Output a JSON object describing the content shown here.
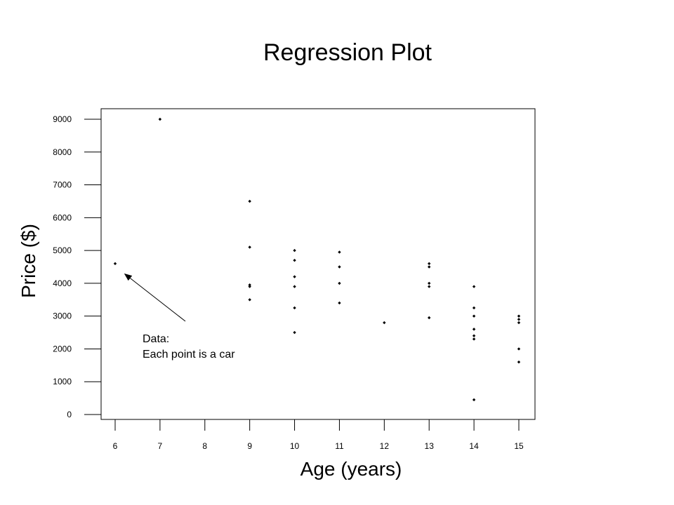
{
  "chart_data": {
    "type": "scatter",
    "title": "Regression Plot",
    "xlabel": "Age (years)",
    "ylabel": "Price ($)",
    "xlim": [
      6,
      15
    ],
    "ylim": [
      0,
      9000
    ],
    "x_ticks": [
      "6",
      "7",
      "8",
      "9",
      "10",
      "11",
      "12",
      "13",
      "14",
      "15"
    ],
    "y_ticks": [
      "0",
      "1000",
      "2000",
      "3000",
      "4000",
      "5000",
      "6000",
      "7000",
      "8000",
      "9000"
    ],
    "grid": false,
    "legend": "none",
    "point_color": "#000000",
    "points": [
      {
        "x": 6,
        "y": 4600
      },
      {
        "x": 7,
        "y": 9000
      },
      {
        "x": 9,
        "y": 6500
      },
      {
        "x": 9,
        "y": 5100
      },
      {
        "x": 9,
        "y": 3950
      },
      {
        "x": 9,
        "y": 3900
      },
      {
        "x": 9,
        "y": 3500
      },
      {
        "x": 10,
        "y": 5000
      },
      {
        "x": 10,
        "y": 4700
      },
      {
        "x": 10,
        "y": 4200
      },
      {
        "x": 10,
        "y": 3900
      },
      {
        "x": 10,
        "y": 3250
      },
      {
        "x": 10,
        "y": 2500
      },
      {
        "x": 11,
        "y": 4950
      },
      {
        "x": 11,
        "y": 4500
      },
      {
        "x": 11,
        "y": 4000
      },
      {
        "x": 11,
        "y": 3400
      },
      {
        "x": 12,
        "y": 2800
      },
      {
        "x": 13,
        "y": 4600
      },
      {
        "x": 13,
        "y": 4500
      },
      {
        "x": 13,
        "y": 4000
      },
      {
        "x": 13,
        "y": 3900
      },
      {
        "x": 13,
        "y": 2950
      },
      {
        "x": 14,
        "y": 3900
      },
      {
        "x": 14,
        "y": 3250
      },
      {
        "x": 14,
        "y": 3000
      },
      {
        "x": 14,
        "y": 2600
      },
      {
        "x": 14,
        "y": 2400
      },
      {
        "x": 14,
        "y": 2300
      },
      {
        "x": 14,
        "y": 450
      },
      {
        "x": 15,
        "y": 3000
      },
      {
        "x": 15,
        "y": 2900
      },
      {
        "x": 15,
        "y": 2800
      },
      {
        "x": 15,
        "y": 2000
      },
      {
        "x": 15,
        "y": 1600
      }
    ],
    "annotation": {
      "lines": [
        "Data:",
        "Each point is a car"
      ],
      "arrow_target": {
        "x": 6.2,
        "y": 4300
      }
    }
  }
}
